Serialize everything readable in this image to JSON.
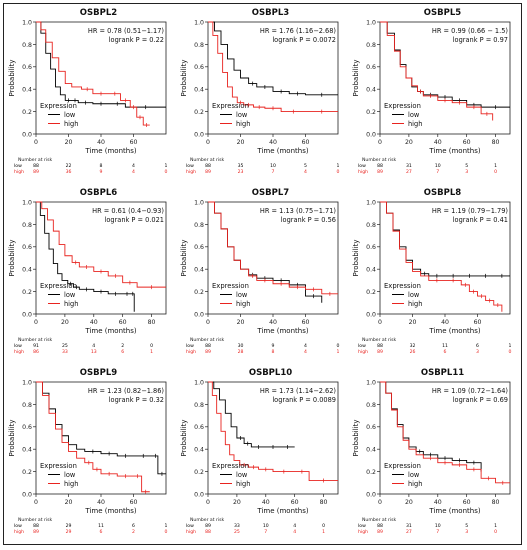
{
  "colors": {
    "low": "#000000",
    "high": "#e8231f",
    "axis": "#222222"
  },
  "chart_data": [
    {
      "type": "line",
      "title": "OSBPL2",
      "hr_text": "HR = 0.78 (0.51−1.17)",
      "p_text": "logrank P = 0.22",
      "xlabel": "Time (months)",
      "ylabel": "Probability",
      "xlim": [
        0,
        80
      ],
      "xticks": [
        0,
        20,
        40,
        60
      ],
      "ylim": [
        0,
        1
      ],
      "yticks": [
        0.0,
        0.2,
        0.4,
        0.6,
        0.8,
        1.0
      ],
      "legend": {
        "title": "Expression",
        "position": "bottom-left",
        "entries": [
          "low",
          "high"
        ]
      },
      "risk": {
        "header": "Number at risk",
        "times": [
          0,
          20,
          40,
          60,
          80
        ],
        "low": [
          "88",
          "22",
          "8",
          "4",
          "1"
        ],
        "high": [
          "89",
          "36",
          "9",
          "4",
          "0"
        ]
      },
      "series": [
        {
          "name": "low",
          "x": [
            0,
            3,
            6,
            9,
            12,
            15,
            18,
            22,
            26,
            35,
            45,
            55,
            80
          ],
          "y": [
            1.0,
            0.9,
            0.72,
            0.58,
            0.42,
            0.35,
            0.3,
            0.3,
            0.28,
            0.27,
            0.27,
            0.24,
            0.24
          ]
        },
        {
          "name": "high",
          "x": [
            0,
            3,
            6,
            10,
            14,
            18,
            22,
            28,
            35,
            45,
            52,
            58,
            62,
            66,
            70
          ],
          "y": [
            1.0,
            0.93,
            0.82,
            0.68,
            0.56,
            0.45,
            0.42,
            0.4,
            0.36,
            0.36,
            0.3,
            0.24,
            0.15,
            0.08,
            0.08
          ]
        }
      ]
    },
    {
      "type": "line",
      "title": "OSBPL3",
      "hr_text": "HR = 1.76 (1.16−2.68)",
      "p_text": "logrank P = 0.0072",
      "xlabel": "Time (months)",
      "ylabel": "Probability",
      "xlim": [
        0,
        80
      ],
      "xticks": [
        0,
        20,
        40,
        60
      ],
      "ylim": [
        0,
        1
      ],
      "yticks": [
        0.0,
        0.2,
        0.4,
        0.6,
        0.8,
        1.0
      ],
      "legend": {
        "title": "Expression",
        "position": "bottom-left",
        "entries": [
          "low",
          "high"
        ]
      },
      "risk": {
        "header": "Number at risk",
        "times": [
          0,
          20,
          40,
          60,
          80
        ],
        "low": [
          "88",
          "35",
          "10",
          "5",
          "1"
        ],
        "high": [
          "89",
          "23",
          "7",
          "4",
          "0"
        ]
      },
      "series": [
        {
          "name": "low",
          "x": [
            0,
            4,
            8,
            12,
            16,
            20,
            25,
            30,
            40,
            50,
            60,
            80
          ],
          "y": [
            1.0,
            0.92,
            0.8,
            0.67,
            0.57,
            0.5,
            0.45,
            0.42,
            0.38,
            0.36,
            0.35,
            0.35
          ]
        },
        {
          "name": "high",
          "x": [
            0,
            3,
            6,
            9,
            12,
            15,
            18,
            22,
            28,
            35,
            45,
            60,
            80
          ],
          "y": [
            1.0,
            0.88,
            0.72,
            0.55,
            0.42,
            0.33,
            0.28,
            0.26,
            0.24,
            0.23,
            0.2,
            0.2,
            0.2
          ]
        }
      ]
    },
    {
      "type": "line",
      "title": "OSBPL5",
      "hr_text": "HR = 0.99 (0.66 − 1.5)",
      "p_text": "logrank P = 0.97",
      "xlabel": "Time (months)",
      "ylabel": "Probability",
      "xlim": [
        0,
        90
      ],
      "xticks": [
        0,
        20,
        40,
        60,
        80
      ],
      "ylim": [
        0,
        1
      ],
      "yticks": [
        0.0,
        0.2,
        0.4,
        0.6,
        0.8,
        1.0
      ],
      "legend": {
        "title": "Expression",
        "position": "bottom-left",
        "entries": [
          "low",
          "high"
        ]
      },
      "risk": {
        "header": "Number at risk",
        "times": [
          0,
          20,
          40,
          60,
          80
        ],
        "low": [
          "88",
          "31",
          "10",
          "5",
          "1"
        ],
        "high": [
          "89",
          "27",
          "7",
          "3",
          "0"
        ]
      },
      "series": [
        {
          "name": "low",
          "x": [
            0,
            5,
            10,
            14,
            18,
            22,
            26,
            30,
            40,
            50,
            60,
            70,
            90
          ],
          "y": [
            1.0,
            0.9,
            0.75,
            0.62,
            0.5,
            0.42,
            0.38,
            0.35,
            0.33,
            0.3,
            0.26,
            0.24,
            0.24
          ]
        },
        {
          "name": "high",
          "x": [
            0,
            5,
            10,
            14,
            18,
            22,
            26,
            30,
            40,
            50,
            60,
            70,
            78
          ],
          "y": [
            1.0,
            0.88,
            0.74,
            0.6,
            0.5,
            0.43,
            0.38,
            0.34,
            0.3,
            0.28,
            0.24,
            0.18,
            0.12
          ]
        }
      ]
    },
    {
      "type": "line",
      "title": "OSBPL6",
      "hr_text": "HR = 0.61 (0.4−0.93)",
      "p_text": "logrank P = 0.021",
      "xlabel": "Time (months)",
      "ylabel": "Probability",
      "xlim": [
        0,
        90
      ],
      "xticks": [
        0,
        20,
        40,
        60,
        80
      ],
      "ylim": [
        0,
        1
      ],
      "yticks": [
        0.0,
        0.2,
        0.4,
        0.6,
        0.8,
        1.0
      ],
      "legend": {
        "title": "Expression",
        "position": "bottom-left",
        "entries": [
          "low",
          "high"
        ]
      },
      "risk": {
        "header": "Number at risk",
        "times": [
          0,
          20,
          40,
          60,
          80
        ],
        "low": [
          "91",
          "25",
          "4",
          "2",
          "0"
        ],
        "high": [
          "86",
          "33",
          "13",
          "6",
          "1"
        ]
      },
      "series": [
        {
          "name": "low",
          "x": [
            0,
            3,
            6,
            9,
            12,
            15,
            18,
            22,
            26,
            30,
            40,
            50,
            60,
            66,
            68
          ],
          "y": [
            1.0,
            0.88,
            0.72,
            0.58,
            0.45,
            0.36,
            0.3,
            0.27,
            0.24,
            0.22,
            0.2,
            0.18,
            0.18,
            0.18,
            0.02
          ]
        },
        {
          "name": "high",
          "x": [
            0,
            4,
            8,
            12,
            16,
            20,
            25,
            30,
            40,
            50,
            60,
            70,
            90
          ],
          "y": [
            1.0,
            0.94,
            0.84,
            0.74,
            0.62,
            0.52,
            0.46,
            0.42,
            0.38,
            0.34,
            0.28,
            0.24,
            0.24
          ]
        }
      ]
    },
    {
      "type": "line",
      "title": "OSBPL7",
      "hr_text": "HR = 1.13 (0.75−1.71)",
      "p_text": "logrank P = 0.56",
      "xlabel": "Time (months)",
      "ylabel": "Probability",
      "xlim": [
        0,
        80
      ],
      "xticks": [
        0,
        20,
        40,
        60
      ],
      "ylim": [
        0,
        1
      ],
      "yticks": [
        0.0,
        0.2,
        0.4,
        0.6,
        0.8,
        1.0
      ],
      "legend": {
        "title": "Expression",
        "position": "bottom-left",
        "entries": [
          "low",
          "high"
        ]
      },
      "risk": {
        "header": "Number at risk",
        "times": [
          0,
          20,
          40,
          60,
          80
        ],
        "low": [
          "88",
          "30",
          "9",
          "4",
          "0"
        ],
        "high": [
          "89",
          "28",
          "8",
          "4",
          "1"
        ]
      },
      "series": [
        {
          "name": "low",
          "x": [
            0,
            4,
            8,
            12,
            16,
            20,
            25,
            30,
            40,
            50,
            60,
            70
          ],
          "y": [
            1.0,
            0.9,
            0.76,
            0.6,
            0.48,
            0.4,
            0.35,
            0.32,
            0.3,
            0.26,
            0.16,
            0.1
          ]
        },
        {
          "name": "high",
          "x": [
            0,
            4,
            8,
            12,
            16,
            20,
            25,
            30,
            40,
            50,
            60,
            70,
            80
          ],
          "y": [
            1.0,
            0.9,
            0.76,
            0.6,
            0.48,
            0.4,
            0.34,
            0.3,
            0.27,
            0.24,
            0.22,
            0.18,
            0.18
          ]
        }
      ]
    },
    {
      "type": "line",
      "title": "OSBPL8",
      "hr_text": "HR = 1.19 (0.79−1.79)",
      "p_text": "logrank P = 0.41",
      "xlabel": "Time (months)",
      "ylabel": "Probability",
      "xlim": [
        0,
        80
      ],
      "xticks": [
        0,
        20,
        40,
        60
      ],
      "ylim": [
        0,
        1
      ],
      "yticks": [
        0.0,
        0.2,
        0.4,
        0.6,
        0.8,
        1.0
      ],
      "legend": {
        "title": "Expression",
        "position": "bottom-left",
        "entries": [
          "low",
          "high"
        ]
      },
      "risk": {
        "header": "Number at risk",
        "times": [
          0,
          20,
          40,
          60,
          80
        ],
        "low": [
          "88",
          "32",
          "11",
          "6",
          "1"
        ],
        "high": [
          "89",
          "26",
          "6",
          "3",
          "0"
        ]
      },
      "series": [
        {
          "name": "low",
          "x": [
            0,
            4,
            8,
            12,
            16,
            20,
            25,
            30,
            40,
            50,
            60,
            70,
            80
          ],
          "y": [
            1.0,
            0.9,
            0.75,
            0.6,
            0.48,
            0.4,
            0.36,
            0.34,
            0.34,
            0.34,
            0.34,
            0.34,
            0.34
          ]
        },
        {
          "name": "high",
          "x": [
            0,
            4,
            8,
            12,
            16,
            20,
            25,
            30,
            40,
            50,
            55,
            60,
            65,
            70,
            75
          ],
          "y": [
            1.0,
            0.9,
            0.74,
            0.58,
            0.46,
            0.38,
            0.34,
            0.3,
            0.3,
            0.26,
            0.2,
            0.16,
            0.12,
            0.08,
            0.02
          ]
        }
      ]
    },
    {
      "type": "line",
      "title": "OSBPL9",
      "hr_text": "HR = 1.23 (0.82−1.86)",
      "p_text": "logrank P = 0.32",
      "xlabel": "Time (months)",
      "ylabel": "Probability",
      "xlim": [
        0,
        80
      ],
      "xticks": [
        0,
        20,
        40,
        60
      ],
      "ylim": [
        0,
        1
      ],
      "yticks": [
        0.0,
        0.2,
        0.4,
        0.6,
        0.8,
        1.0
      ],
      "legend": {
        "title": "Expression",
        "position": "bottom-left",
        "entries": [
          "low",
          "high"
        ]
      },
      "risk": {
        "header": "Number at risk",
        "times": [
          0,
          20,
          40,
          60,
          80
        ],
        "low": [
          "88",
          "29",
          "11",
          "6",
          "1"
        ],
        "high": [
          "89",
          "29",
          "6",
          "2",
          "0"
        ]
      },
      "series": [
        {
          "name": "low",
          "x": [
            0,
            4,
            8,
            12,
            16,
            20,
            25,
            30,
            40,
            50,
            60,
            72,
            75,
            80
          ],
          "y": [
            1.0,
            0.9,
            0.76,
            0.62,
            0.52,
            0.44,
            0.4,
            0.38,
            0.36,
            0.34,
            0.34,
            0.34,
            0.18,
            0.18
          ]
        },
        {
          "name": "high",
          "x": [
            0,
            4,
            8,
            12,
            16,
            20,
            25,
            30,
            35,
            40,
            50,
            60,
            65,
            70
          ],
          "y": [
            1.0,
            0.88,
            0.72,
            0.58,
            0.46,
            0.38,
            0.32,
            0.28,
            0.22,
            0.18,
            0.16,
            0.16,
            0.02,
            0.02
          ]
        }
      ]
    },
    {
      "type": "line",
      "title": "OSBPL10",
      "hr_text": "HR = 1.73 (1.14−2.62)",
      "p_text": "logrank P = 0.0089",
      "xlabel": "Time (months)",
      "ylabel": "Probability",
      "xlim": [
        0,
        90
      ],
      "xticks": [
        0,
        20,
        40,
        60,
        80
      ],
      "ylim": [
        0,
        1
      ],
      "yticks": [
        0.0,
        0.2,
        0.4,
        0.6,
        0.8,
        1.0
      ],
      "legend": {
        "title": "Expression",
        "position": "bottom-left",
        "entries": [
          "low",
          "high"
        ]
      },
      "risk": {
        "header": "Number at risk",
        "times": [
          0,
          20,
          40,
          60,
          80
        ],
        "low": [
          "89",
          "33",
          "10",
          "4",
          "0"
        ],
        "high": [
          "88",
          "25",
          "7",
          "4",
          "1"
        ]
      },
      "series": [
        {
          "name": "low",
          "x": [
            0,
            4,
            8,
            12,
            16,
            20,
            25,
            30,
            40,
            50,
            60
          ],
          "y": [
            1.0,
            0.94,
            0.84,
            0.72,
            0.6,
            0.5,
            0.45,
            0.42,
            0.42,
            0.42,
            0.42
          ]
        },
        {
          "name": "high",
          "x": [
            0,
            3,
            6,
            9,
            12,
            15,
            18,
            22,
            28,
            35,
            45,
            60,
            70,
            90
          ],
          "y": [
            1.0,
            0.88,
            0.72,
            0.56,
            0.44,
            0.35,
            0.3,
            0.26,
            0.24,
            0.22,
            0.2,
            0.2,
            0.12,
            0.12
          ]
        }
      ]
    },
    {
      "type": "line",
      "title": "OSBPL11",
      "hr_text": "HR = 1.09 (0.72−1.64)",
      "p_text": "logrank P = 0.69",
      "xlabel": "Time (months)",
      "ylabel": "Probability",
      "xlim": [
        0,
        90
      ],
      "xticks": [
        0,
        20,
        40,
        60,
        80
      ],
      "ylim": [
        0,
        1
      ],
      "yticks": [
        0.0,
        0.2,
        0.4,
        0.6,
        0.8,
        1.0
      ],
      "legend": {
        "title": "Expression",
        "position": "bottom-left",
        "entries": [
          "low",
          "high"
        ]
      },
      "risk": {
        "header": "Number at risk",
        "times": [
          0,
          20,
          40,
          60,
          80
        ],
        "low": [
          "88",
          "31",
          "10",
          "5",
          "1"
        ],
        "high": [
          "89",
          "27",
          "7",
          "3",
          "0"
        ]
      },
      "series": [
        {
          "name": "low",
          "x": [
            0,
            4,
            8,
            12,
            16,
            20,
            25,
            30,
            40,
            50,
            60,
            70
          ],
          "y": [
            1.0,
            0.9,
            0.76,
            0.62,
            0.5,
            0.42,
            0.38,
            0.35,
            0.32,
            0.3,
            0.28,
            0.2
          ]
        },
        {
          "name": "high",
          "x": [
            0,
            4,
            8,
            12,
            16,
            20,
            25,
            30,
            40,
            50,
            60,
            70,
            80,
            90
          ],
          "y": [
            1.0,
            0.9,
            0.75,
            0.6,
            0.48,
            0.4,
            0.35,
            0.32,
            0.28,
            0.26,
            0.22,
            0.14,
            0.1,
            0.1
          ]
        }
      ]
    }
  ]
}
